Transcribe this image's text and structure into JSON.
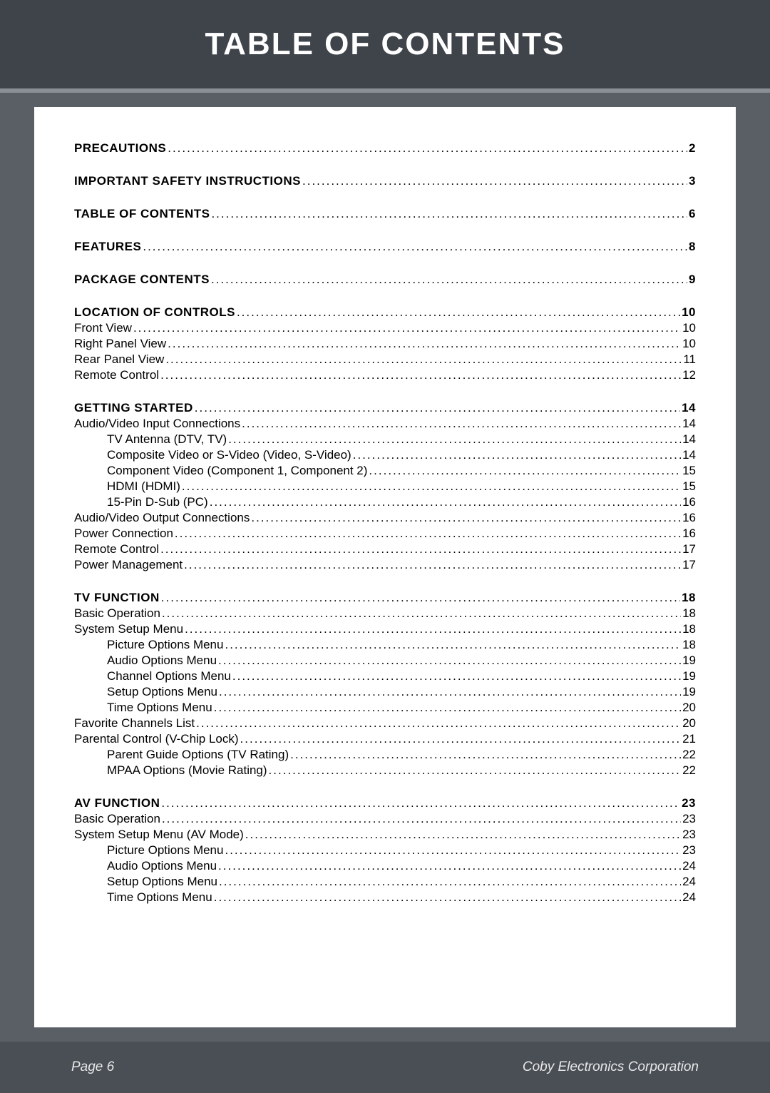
{
  "title": "TABLE OF CONTENTS",
  "footer": {
    "left": "Page 6",
    "right": "Coby Electronics Corporation"
  },
  "toc": [
    {
      "label": "PRECAUTIONS",
      "page": "2",
      "level": "section"
    },
    {
      "label": "IMPORTANT SAFETY INSTRUCTIONS",
      "page": "3",
      "level": "section"
    },
    {
      "label": "TABLE OF CONTENTS",
      "page": "6",
      "level": "section"
    },
    {
      "label": "FEATURES",
      "page": "8",
      "level": "section"
    },
    {
      "label": "PACKAGE CONTENTS",
      "page": "9",
      "level": "section"
    },
    {
      "label": "LOCATION OF CONTROLS",
      "page": "10",
      "level": "section"
    },
    {
      "label": "Front View",
      "page": "10",
      "level": "l1"
    },
    {
      "label": "Right Panel View",
      "page": "10",
      "level": "l1"
    },
    {
      "label": "Rear Panel View",
      "page": "11",
      "level": "l1"
    },
    {
      "label": "Remote Control",
      "page": "12",
      "level": "l1"
    },
    {
      "label": "GETTING STARTED",
      "page": "14",
      "level": "section"
    },
    {
      "label": "Audio/Video Input Connections",
      "page": "14",
      "level": "l1"
    },
    {
      "label": "TV Antenna (DTV, TV)",
      "page": "14",
      "level": "l2"
    },
    {
      "label": "Composite Video or S-Video (Video, S-Video)",
      "page": "14",
      "level": "l2"
    },
    {
      "label": "Component Video (Component 1, Component 2)",
      "page": "15",
      "level": "l2"
    },
    {
      "label": "HDMI (HDMI)",
      "page": "15",
      "level": "l2"
    },
    {
      "label": "15-Pin D-Sub (PC)",
      "page": "16",
      "level": "l2"
    },
    {
      "label": "Audio/Video Output Connections",
      "page": "16",
      "level": "l1"
    },
    {
      "label": "Power Connection",
      "page": "16",
      "level": "l1"
    },
    {
      "label": "Remote Control",
      "page": "17",
      "level": "l1"
    },
    {
      "label": "Power Management",
      "page": "17",
      "level": "l1"
    },
    {
      "label": "TV FUNCTION",
      "page": "18",
      "level": "section"
    },
    {
      "label": "Basic Operation",
      "page": "18",
      "level": "l1"
    },
    {
      "label": "System Setup Menu",
      "page": "18",
      "level": "l1"
    },
    {
      "label": "Picture Options Menu",
      "page": "18",
      "level": "l2"
    },
    {
      "label": "Audio Options Menu",
      "page": "19",
      "level": "l2"
    },
    {
      "label": "Channel Options Menu",
      "page": "19",
      "level": "l2"
    },
    {
      "label": "Setup Options Menu",
      "page": "19",
      "level": "l2"
    },
    {
      "label": "Time Options Menu",
      "page": "20",
      "level": "l2"
    },
    {
      "label": "Favorite Channels List",
      "page": "20",
      "level": "l1"
    },
    {
      "label": "Parental Control (V-Chip Lock)",
      "page": "21",
      "level": "l1"
    },
    {
      "label": "Parent Guide Options (TV Rating)",
      "page": "22",
      "level": "l2"
    },
    {
      "label": "MPAA Options (Movie Rating)",
      "page": "22",
      "level": "l2"
    },
    {
      "label": "AV FUNCTION",
      "page": " 23",
      "level": "section"
    },
    {
      "label": "Basic Operation",
      "page": "23",
      "level": "l1"
    },
    {
      "label": "System Setup Menu (AV Mode)",
      "page": "23",
      "level": "l1"
    },
    {
      "label": "Picture Options Menu",
      "page": "23",
      "level": "l2"
    },
    {
      "label": "Audio Options Menu",
      "page": "24",
      "level": "l2"
    },
    {
      "label": "Setup Options Menu",
      "page": "24",
      "level": "l2"
    },
    {
      "label": "Time Options Menu",
      "page": "24",
      "level": "l2"
    }
  ]
}
